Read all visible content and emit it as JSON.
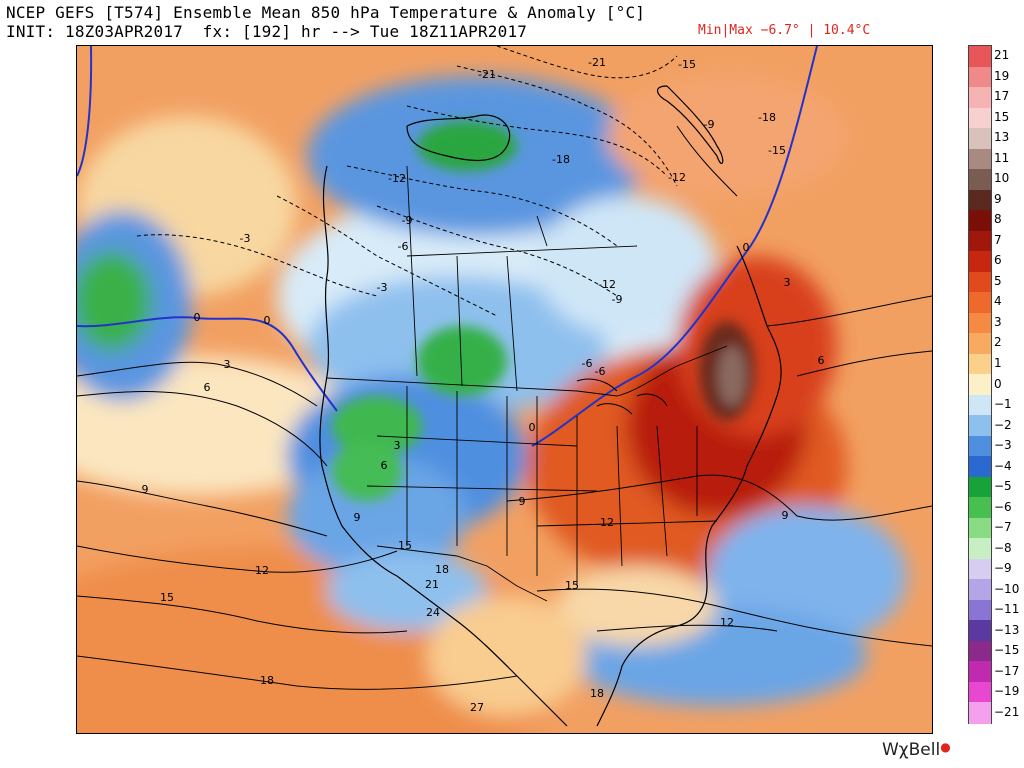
{
  "header": {
    "title": "NCEP GEFS [T574] Ensemble Mean 850 hPa Temperature & Anomaly [°C]",
    "init": "INIT: 18Z03APR2017  fx: [192] hr --> Tue 18Z11APR2017",
    "minmax": "Min|Max −6.7° | 10.4°C"
  },
  "legend": {
    "entries": [
      {
        "label": "21",
        "color": "#e8565a"
      },
      {
        "label": "19",
        "color": "#f08a8a"
      },
      {
        "label": "17",
        "color": "#f6b3b3"
      },
      {
        "label": "15",
        "color": "#f7d0d0"
      },
      {
        "label": "13",
        "color": "#d9c1bc"
      },
      {
        "label": "11",
        "color": "#a88a80"
      },
      {
        "label": "10",
        "color": "#7a5c52"
      },
      {
        "label": "9",
        "color": "#5a2a20"
      },
      {
        "label": "8",
        "color": "#7a0f08"
      },
      {
        "label": "7",
        "color": "#a0170b"
      },
      {
        "label": "6",
        "color": "#c8270f"
      },
      {
        "label": "5",
        "color": "#e04a1c"
      },
      {
        "label": "4",
        "color": "#ee6a2c"
      },
      {
        "label": "3",
        "color": "#f58a42"
      },
      {
        "label": "2",
        "color": "#f8aa60"
      },
      {
        "label": "1",
        "color": "#fad08a"
      },
      {
        "label": "0",
        "color": "#fbf0c8"
      },
      {
        "label": "−1",
        "color": "#cfe6f7"
      },
      {
        "label": "−2",
        "color": "#8ec0ee"
      },
      {
        "label": "−3",
        "color": "#4f8fe0"
      },
      {
        "label": "−4",
        "color": "#2a6ad0"
      },
      {
        "label": "−5",
        "color": "#18a33a"
      },
      {
        "label": "−6",
        "color": "#48c050"
      },
      {
        "label": "−7",
        "color": "#8adc84"
      },
      {
        "label": "−8",
        "color": "#c8efc4"
      },
      {
        "label": "−9",
        "color": "#d6cdf0"
      },
      {
        "label": "−10",
        "color": "#b4a4e8"
      },
      {
        "label": "−11",
        "color": "#8a74d4"
      },
      {
        "label": "−13",
        "color": "#5a3aa0"
      },
      {
        "label": "−15",
        "color": "#8a2a8a"
      },
      {
        "label": "−17",
        "color": "#c02ab0"
      },
      {
        "label": "−19",
        "color": "#e848d0"
      },
      {
        "label": "−21",
        "color": "#f4a0ec"
      }
    ]
  },
  "map": {
    "contour_labels": [
      {
        "text": "-21"
      },
      {
        "text": "-21"
      },
      {
        "text": "-18"
      },
      {
        "text": "-15"
      },
      {
        "text": "-12"
      },
      {
        "text": "-9"
      },
      {
        "text": "-6"
      },
      {
        "text": "-3"
      },
      {
        "text": "-3"
      },
      {
        "text": "0"
      },
      {
        "text": "0"
      },
      {
        "text": "0"
      },
      {
        "text": "3"
      },
      {
        "text": "3"
      },
      {
        "text": "6"
      },
      {
        "text": "6"
      },
      {
        "text": "9"
      },
      {
        "text": "9"
      },
      {
        "text": "9"
      },
      {
        "text": "12"
      },
      {
        "text": "12"
      },
      {
        "text": "12"
      },
      {
        "text": "15"
      },
      {
        "text": "15"
      },
      {
        "text": "15"
      },
      {
        "text": "18"
      },
      {
        "text": "18"
      },
      {
        "text": "18"
      },
      {
        "text": "21"
      },
      {
        "text": "24"
      },
      {
        "text": "27"
      },
      {
        "text": "-12"
      },
      {
        "text": "-9"
      },
      {
        "text": "6"
      },
      {
        "text": "3"
      },
      {
        "text": "-6"
      },
      {
        "text": "9"
      },
      {
        "text": "-9"
      },
      {
        "text": "-12"
      },
      {
        "text": "-15"
      },
      {
        "text": "-18"
      },
      {
        "text": "-6"
      },
      {
        "text": "0"
      }
    ]
  },
  "brand": {
    "text": "WχBell",
    "dot": "●"
  }
}
